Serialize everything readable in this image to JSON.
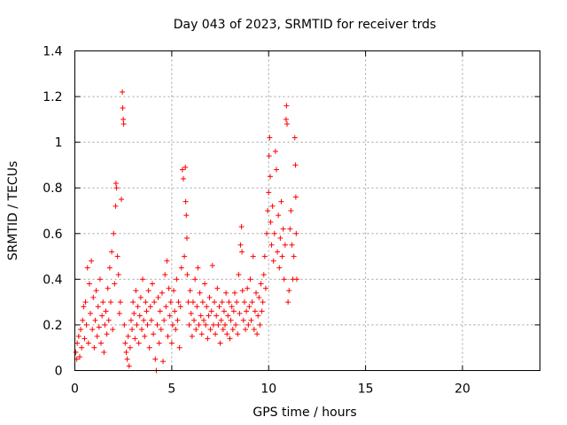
{
  "chart_data": {
    "type": "scatter",
    "title": "Day 043 of 2023, SRMTID for receiver trds",
    "xlabel": "GPS time / hours",
    "ylabel": "SRMTID / TECUs",
    "xlim": [
      0,
      24
    ],
    "ylim": [
      0,
      1.4
    ],
    "xticks": [
      0,
      5,
      10,
      15,
      20
    ],
    "xtick_labels": [
      "0",
      "5",
      "10",
      "15",
      "20"
    ],
    "yticks": [
      0,
      0.2,
      0.4,
      0.6,
      0.8,
      1.0,
      1.2,
      1.4
    ],
    "ytick_labels": [
      "0",
      "0.2",
      "0.4",
      "0.6",
      "0.8",
      "1",
      "1.2",
      "1.4"
    ],
    "grid": true,
    "marker": "+",
    "color": "#ff0000",
    "series": [
      {
        "name": "SRMTID",
        "points": [
          [
            0.05,
            0.08
          ],
          [
            0.1,
            0.05
          ],
          [
            0.12,
            0.12
          ],
          [
            0.2,
            0.15
          ],
          [
            0.25,
            0.06
          ],
          [
            0.3,
            0.18
          ],
          [
            0.35,
            0.1
          ],
          [
            0.4,
            0.22
          ],
          [
            0.45,
            0.28
          ],
          [
            0.5,
            0.14
          ],
          [
            0.55,
            0.3
          ],
          [
            0.6,
            0.2
          ],
          [
            0.65,
            0.45
          ],
          [
            0.7,
            0.12
          ],
          [
            0.75,
            0.38
          ],
          [
            0.8,
            0.25
          ],
          [
            0.85,
            0.48
          ],
          [
            0.9,
            0.18
          ],
          [
            0.95,
            0.32
          ],
          [
            1.0,
            0.1
          ],
          [
            1.05,
            0.22
          ],
          [
            1.1,
            0.35
          ],
          [
            1.15,
            0.15
          ],
          [
            1.2,
            0.28
          ],
          [
            1.25,
            0.19
          ],
          [
            1.3,
            0.4
          ],
          [
            1.35,
            0.12
          ],
          [
            1.4,
            0.24
          ],
          [
            1.45,
            0.3
          ],
          [
            1.5,
            0.08
          ],
          [
            1.55,
            0.2
          ],
          [
            1.6,
            0.26
          ],
          [
            1.65,
            0.16
          ],
          [
            1.7,
            0.36
          ],
          [
            1.75,
            0.22
          ],
          [
            1.8,
            0.45
          ],
          [
            1.85,
            0.3
          ],
          [
            1.9,
            0.52
          ],
          [
            1.95,
            0.18
          ],
          [
            2.0,
            0.6
          ],
          [
            2.05,
            0.38
          ],
          [
            2.1,
            0.72
          ],
          [
            2.12,
            0.82
          ],
          [
            2.15,
            0.8
          ],
          [
            2.2,
            0.5
          ],
          [
            2.25,
            0.42
          ],
          [
            2.3,
            0.25
          ],
          [
            2.35,
            0.3
          ],
          [
            2.4,
            0.75
          ],
          [
            2.45,
            1.22
          ],
          [
            2.47,
            1.15
          ],
          [
            2.5,
            1.1
          ],
          [
            2.52,
            1.08
          ],
          [
            2.55,
            0.2
          ],
          [
            2.6,
            0.12
          ],
          [
            2.65,
            0.08
          ],
          [
            2.7,
            0.05
          ],
          [
            2.75,
            0.15
          ],
          [
            2.8,
            0.02
          ],
          [
            2.85,
            0.1
          ],
          [
            2.9,
            0.22
          ],
          [
            2.95,
            0.18
          ],
          [
            3.0,
            0.3
          ],
          [
            3.05,
            0.25
          ],
          [
            3.1,
            0.14
          ],
          [
            3.15,
            0.35
          ],
          [
            3.2,
            0.2
          ],
          [
            3.25,
            0.28
          ],
          [
            3.3,
            0.12
          ],
          [
            3.35,
            0.24
          ],
          [
            3.4,
            0.32
          ],
          [
            3.45,
            0.18
          ],
          [
            3.5,
            0.4
          ],
          [
            3.55,
            0.22
          ],
          [
            3.6,
            0.15
          ],
          [
            3.65,
            0.3
          ],
          [
            3.7,
            0.26
          ],
          [
            3.75,
            0.2
          ],
          [
            3.8,
            0.35
          ],
          [
            3.85,
            0.1
          ],
          [
            3.9,
            0.28
          ],
          [
            3.95,
            0.22
          ],
          [
            4.0,
            0.38
          ],
          [
            4.05,
            0.16
          ],
          [
            4.1,
            0.3
          ],
          [
            4.15,
            0.05
          ],
          [
            4.2,
            0.0
          ],
          [
            4.25,
            0.2
          ],
          [
            4.3,
            0.32
          ],
          [
            4.35,
            0.12
          ],
          [
            4.4,
            0.26
          ],
          [
            4.45,
            0.18
          ],
          [
            4.5,
            0.34
          ],
          [
            4.55,
            0.04
          ],
          [
            4.6,
            0.22
          ],
          [
            4.65,
            0.42
          ],
          [
            4.7,
            0.28
          ],
          [
            4.75,
            0.48
          ],
          [
            4.8,
            0.15
          ],
          [
            4.85,
            0.36
          ],
          [
            4.9,
            0.24
          ],
          [
            4.95,
            0.3
          ],
          [
            5.0,
            0.12
          ],
          [
            5.05,
            0.2
          ],
          [
            5.1,
            0.35
          ],
          [
            5.15,
            0.26
          ],
          [
            5.2,
            0.18
          ],
          [
            5.25,
            0.4
          ],
          [
            5.3,
            0.22
          ],
          [
            5.35,
            0.3
          ],
          [
            5.4,
            0.1
          ],
          [
            5.45,
            0.28
          ],
          [
            5.5,
            0.45
          ],
          [
            5.55,
            0.88
          ],
          [
            5.6,
            0.84
          ],
          [
            5.65,
            0.5
          ],
          [
            5.7,
            0.89
          ],
          [
            5.72,
            0.74
          ],
          [
            5.75,
            0.68
          ],
          [
            5.78,
            0.58
          ],
          [
            5.8,
            0.42
          ],
          [
            5.85,
            0.3
          ],
          [
            5.9,
            0.2
          ],
          [
            5.95,
            0.35
          ],
          [
            6.0,
            0.25
          ],
          [
            6.05,
            0.15
          ],
          [
            6.1,
            0.3
          ],
          [
            6.15,
            0.22
          ],
          [
            6.2,
            0.4
          ],
          [
            6.25,
            0.18
          ],
          [
            6.3,
            0.28
          ],
          [
            6.35,
            0.45
          ],
          [
            6.4,
            0.2
          ],
          [
            6.45,
            0.34
          ],
          [
            6.5,
            0.24
          ],
          [
            6.55,
            0.16
          ],
          [
            6.6,
            0.3
          ],
          [
            6.65,
            0.22
          ],
          [
            6.7,
            0.38
          ],
          [
            6.75,
            0.2
          ],
          [
            6.8,
            0.28
          ],
          [
            6.85,
            0.14
          ],
          [
            6.9,
            0.24
          ],
          [
            6.95,
            0.32
          ],
          [
            7.0,
            0.18
          ],
          [
            7.05,
            0.26
          ],
          [
            7.1,
            0.46
          ],
          [
            7.15,
            0.2
          ],
          [
            7.2,
            0.3
          ],
          [
            7.25,
            0.16
          ],
          [
            7.3,
            0.24
          ],
          [
            7.35,
            0.36
          ],
          [
            7.4,
            0.2
          ],
          [
            7.45,
            0.28
          ],
          [
            7.5,
            0.12
          ],
          [
            7.55,
            0.22
          ],
          [
            7.6,
            0.3
          ],
          [
            7.65,
            0.18
          ],
          [
            7.7,
            0.26
          ],
          [
            7.75,
            0.2
          ],
          [
            7.8,
            0.34
          ],
          [
            7.85,
            0.16
          ],
          [
            7.9,
            0.24
          ],
          [
            7.95,
            0.3
          ],
          [
            8.0,
            0.14
          ],
          [
            8.05,
            0.22
          ],
          [
            8.1,
            0.28
          ],
          [
            8.15,
            0.18
          ],
          [
            8.2,
            0.26
          ],
          [
            8.25,
            0.34
          ],
          [
            8.3,
            0.2
          ],
          [
            8.35,
            0.3
          ],
          [
            8.4,
            0.16
          ],
          [
            8.45,
            0.42
          ],
          [
            8.5,
            0.25
          ],
          [
            8.55,
            0.55
          ],
          [
            8.6,
            0.63
          ],
          [
            8.62,
            0.52
          ],
          [
            8.65,
            0.35
          ],
          [
            8.7,
            0.22
          ],
          [
            8.75,
            0.3
          ],
          [
            8.8,
            0.18
          ],
          [
            8.85,
            0.26
          ],
          [
            8.9,
            0.36
          ],
          [
            8.95,
            0.2
          ],
          [
            9.0,
            0.28
          ],
          [
            9.05,
            0.4
          ],
          [
            9.1,
            0.22
          ],
          [
            9.15,
            0.3
          ],
          [
            9.2,
            0.5
          ],
          [
            9.25,
            0.18
          ],
          [
            9.3,
            0.26
          ],
          [
            9.35,
            0.34
          ],
          [
            9.4,
            0.16
          ],
          [
            9.45,
            0.24
          ],
          [
            9.5,
            0.32
          ],
          [
            9.55,
            0.2
          ],
          [
            9.6,
            0.38
          ],
          [
            9.65,
            0.26
          ],
          [
            9.7,
            0.3
          ],
          [
            9.75,
            0.42
          ],
          [
            9.8,
            0.5
          ],
          [
            9.85,
            0.36
          ],
          [
            9.9,
            0.6
          ],
          [
            9.95,
            0.7
          ],
          [
            10.0,
            0.78
          ],
          [
            10.02,
            0.94
          ],
          [
            10.05,
            1.02
          ],
          [
            10.08,
            0.85
          ],
          [
            10.1,
            0.65
          ],
          [
            10.15,
            0.55
          ],
          [
            10.2,
            0.72
          ],
          [
            10.25,
            0.48
          ],
          [
            10.3,
            0.6
          ],
          [
            10.35,
            0.96
          ],
          [
            10.4,
            0.88
          ],
          [
            10.45,
            0.52
          ],
          [
            10.5,
            0.68
          ],
          [
            10.55,
            0.45
          ],
          [
            10.6,
            0.58
          ],
          [
            10.65,
            0.74
          ],
          [
            10.7,
            0.5
          ],
          [
            10.75,
            0.62
          ],
          [
            10.8,
            0.4
          ],
          [
            10.85,
            0.55
          ],
          [
            10.9,
            1.1
          ],
          [
            10.92,
            1.16
          ],
          [
            10.95,
            1.08
          ],
          [
            11.0,
            0.3
          ],
          [
            11.05,
            0.35
          ],
          [
            11.1,
            0.62
          ],
          [
            11.15,
            0.7
          ],
          [
            11.2,
            0.55
          ],
          [
            11.25,
            0.4
          ],
          [
            11.3,
            0.5
          ],
          [
            11.35,
            1.02
          ],
          [
            11.38,
            0.9
          ],
          [
            11.4,
            0.76
          ],
          [
            11.42,
            0.6
          ],
          [
            11.45,
            0.4
          ]
        ]
      }
    ]
  }
}
